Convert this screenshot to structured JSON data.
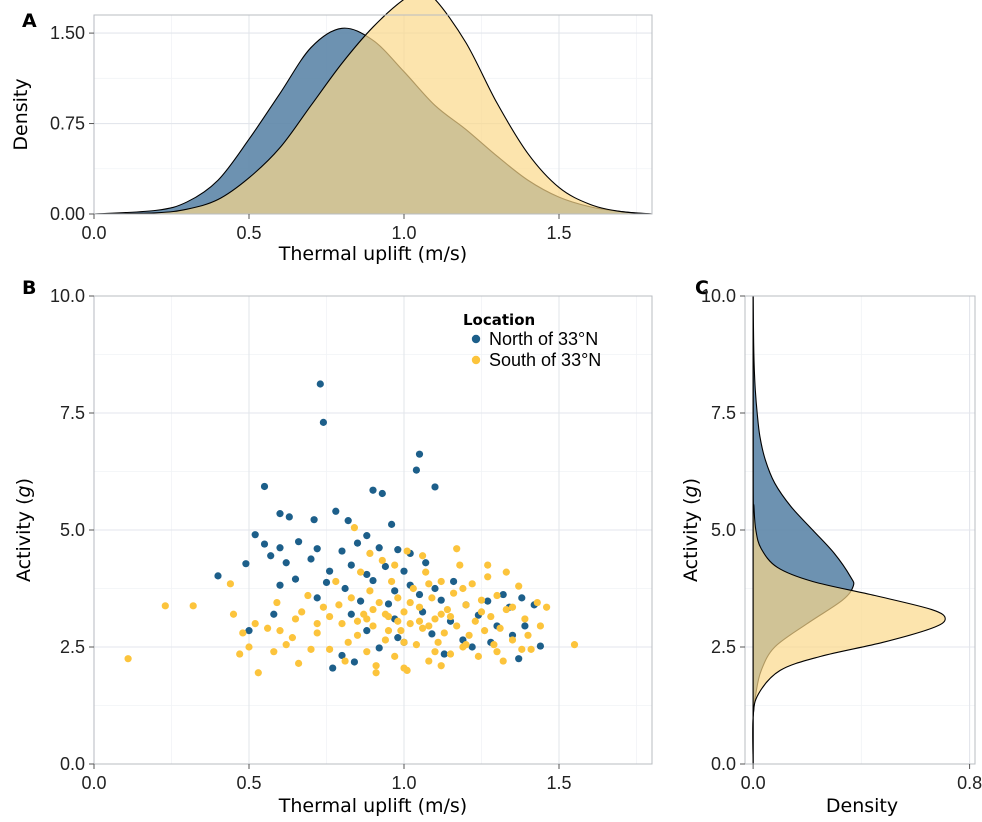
{
  "colors": {
    "north": "#1d5f8a",
    "south": "#fcc43c",
    "north_fill": "#5d86a8",
    "south_fill": "#fbd98a"
  },
  "legend": {
    "title": "Location",
    "items": [
      {
        "label": "North of 33°N",
        "color": "#1d5f8a"
      },
      {
        "label": "South of 33°N",
        "color": "#fcc43c"
      }
    ]
  },
  "chart_data": [
    {
      "panel": "A",
      "type": "area",
      "xlabel": "Thermal uplift (m/s)",
      "ylabel": "Density",
      "xlim": [
        0,
        1.8
      ],
      "ylim": [
        0,
        1.65
      ],
      "xticks": [
        "0.0",
        "0.5",
        "1.0",
        "1.5"
      ],
      "yticks": [
        "0.00",
        "0.75",
        "1.50"
      ],
      "series": [
        {
          "name": "North of 33°N",
          "x": [
            0.0,
            0.2,
            0.3,
            0.4,
            0.5,
            0.6,
            0.7,
            0.8,
            0.9,
            1.0,
            1.1,
            1.2,
            1.3,
            1.4,
            1.5,
            1.6,
            1.7,
            1.8
          ],
          "values": [
            0.0,
            0.03,
            0.1,
            0.28,
            0.62,
            1.0,
            1.38,
            1.54,
            1.44,
            1.18,
            0.9,
            0.7,
            0.48,
            0.28,
            0.14,
            0.06,
            0.02,
            0.0
          ]
        },
        {
          "name": "South of 33°N",
          "x": [
            0.0,
            0.2,
            0.3,
            0.4,
            0.5,
            0.6,
            0.7,
            0.8,
            0.9,
            1.0,
            1.05,
            1.1,
            1.2,
            1.3,
            1.4,
            1.5,
            1.6,
            1.7,
            1.8
          ],
          "values": [
            0.0,
            0.01,
            0.04,
            0.12,
            0.3,
            0.55,
            0.9,
            1.25,
            1.55,
            1.78,
            1.83,
            1.78,
            1.42,
            0.92,
            0.5,
            0.22,
            0.08,
            0.02,
            0.0
          ]
        }
      ]
    },
    {
      "panel": "B",
      "type": "scatter",
      "xlabel": "Thermal uplift (m/s)",
      "ylabel_main": "Activity (",
      "ylabel_italic": "g",
      "ylabel_end": ")",
      "xlim": [
        0,
        1.8
      ],
      "ylim": [
        0,
        10
      ],
      "xticks": [
        "0.0",
        "0.5",
        "1.0",
        "1.5"
      ],
      "yticks": [
        "0.0",
        "2.5",
        "5.0",
        "7.5",
        "10.0"
      ],
      "series": [
        {
          "name": "North of 33°N",
          "points": [
            [
              0.73,
              8.12
            ],
            [
              0.74,
              7.3
            ],
            [
              1.05,
              6.62
            ],
            [
              1.04,
              6.28
            ],
            [
              1.1,
              5.92
            ],
            [
              0.55,
              5.93
            ],
            [
              0.9,
              5.85
            ],
            [
              0.93,
              5.78
            ],
            [
              0.6,
              5.35
            ],
            [
              0.63,
              5.28
            ],
            [
              0.78,
              5.4
            ],
            [
              0.82,
              5.2
            ],
            [
              0.71,
              5.22
            ],
            [
              0.96,
              5.12
            ],
            [
              0.88,
              4.88
            ],
            [
              0.52,
              4.9
            ],
            [
              0.55,
              4.7
            ],
            [
              0.6,
              4.62
            ],
            [
              0.66,
              4.75
            ],
            [
              0.72,
              4.6
            ],
            [
              0.8,
              4.55
            ],
            [
              0.85,
              4.72
            ],
            [
              0.92,
              4.62
            ],
            [
              0.98,
              4.58
            ],
            [
              1.02,
              4.5
            ],
            [
              0.49,
              4.28
            ],
            [
              0.57,
              4.45
            ],
            [
              0.62,
              4.3
            ],
            [
              0.7,
              4.38
            ],
            [
              0.76,
              4.12
            ],
            [
              0.83,
              4.25
            ],
            [
              0.88,
              4.05
            ],
            [
              0.94,
              4.22
            ],
            [
              1.0,
              4.12
            ],
            [
              1.07,
              4.3
            ],
            [
              0.4,
              4.02
            ],
            [
              0.6,
              3.82
            ],
            [
              0.65,
              3.95
            ],
            [
              0.75,
              3.88
            ],
            [
              0.81,
              3.75
            ],
            [
              0.9,
              3.92
            ],
            [
              0.97,
              3.7
            ],
            [
              1.02,
              3.82
            ],
            [
              1.1,
              3.75
            ],
            [
              1.16,
              3.9
            ],
            [
              0.72,
              3.55
            ],
            [
              0.86,
              3.48
            ],
            [
              0.95,
              3.42
            ],
            [
              1.12,
              3.5
            ],
            [
              1.2,
              3.4
            ],
            [
              1.27,
              3.48
            ],
            [
              1.34,
              3.35
            ],
            [
              1.38,
              3.55
            ],
            [
              1.42,
              3.4
            ],
            [
              0.83,
              3.2
            ],
            [
              0.97,
              3.1
            ],
            [
              1.06,
              3.25
            ],
            [
              1.15,
              3.05
            ],
            [
              1.24,
              3.18
            ],
            [
              1.3,
              2.95
            ],
            [
              0.88,
              2.85
            ],
            [
              0.98,
              2.7
            ],
            [
              1.09,
              2.78
            ],
            [
              1.19,
              2.65
            ],
            [
              1.35,
              2.75
            ],
            [
              1.39,
              2.95
            ],
            [
              1.44,
              2.52
            ],
            [
              1.28,
              2.6
            ],
            [
              0.92,
              2.48
            ],
            [
              0.8,
              2.32
            ],
            [
              1.37,
              2.25
            ],
            [
              0.77,
              2.05
            ],
            [
              0.84,
              2.18
            ],
            [
              1.0,
              2.6
            ],
            [
              1.22,
              2.5
            ],
            [
              0.5,
              2.85
            ],
            [
              0.58,
              3.2
            ],
            [
              1.32,
              3.62
            ],
            [
              1.13,
              2.35
            ],
            [
              1.05,
              3.62
            ]
          ]
        },
        {
          "name": "South of 33°N",
          "points": [
            [
              0.11,
              2.25
            ],
            [
              0.23,
              3.38
            ],
            [
              0.32,
              3.38
            ],
            [
              0.44,
              3.85
            ],
            [
              0.47,
              2.35
            ],
            [
              0.5,
              2.5
            ],
            [
              0.53,
              1.95
            ],
            [
              0.56,
              2.9
            ],
            [
              0.59,
              3.45
            ],
            [
              0.62,
              2.55
            ],
            [
              0.65,
              3.1
            ],
            [
              0.66,
              2.15
            ],
            [
              0.69,
              3.6
            ],
            [
              0.72,
              2.8
            ],
            [
              0.74,
              3.35
            ],
            [
              0.76,
              2.45
            ],
            [
              0.78,
              3.9
            ],
            [
              0.8,
              3.0
            ],
            [
              0.81,
              2.2
            ],
            [
              0.83,
              3.55
            ],
            [
              0.85,
              2.75
            ],
            [
              0.86,
              4.1
            ],
            [
              0.87,
              3.2
            ],
            [
              0.88,
              2.4
            ],
            [
              0.89,
              3.7
            ],
            [
              0.9,
              2.95
            ],
            [
              0.91,
              2.1
            ],
            [
              0.92,
              3.45
            ],
            [
              0.93,
              4.35
            ],
            [
              0.94,
              2.65
            ],
            [
              0.95,
              3.15
            ],
            [
              0.96,
              3.9
            ],
            [
              0.97,
              2.3
            ],
            [
              0.98,
              3.55
            ],
            [
              0.99,
              2.85
            ],
            [
              1.0,
              3.25
            ],
            [
              1.01,
              4.55
            ],
            [
              1.01,
              2.0
            ],
            [
              1.02,
              3.0
            ],
            [
              1.03,
              3.75
            ],
            [
              1.04,
              2.55
            ],
            [
              1.05,
              3.35
            ],
            [
              1.06,
              2.9
            ],
            [
              1.07,
              4.1
            ],
            [
              1.08,
              2.2
            ],
            [
              1.09,
              3.55
            ],
            [
              1.1,
              3.1
            ],
            [
              1.11,
              2.6
            ],
            [
              1.12,
              3.9
            ],
            [
              1.13,
              2.8
            ],
            [
              1.14,
              3.3
            ],
            [
              1.15,
              2.35
            ],
            [
              1.16,
              3.65
            ],
            [
              1.17,
              2.95
            ],
            [
              1.18,
              4.25
            ],
            [
              1.19,
              2.5
            ],
            [
              1.2,
              3.4
            ],
            [
              1.21,
              2.75
            ],
            [
              1.22,
              3.85
            ],
            [
              1.23,
              3.05
            ],
            [
              1.24,
              2.3
            ],
            [
              1.25,
              3.5
            ],
            [
              1.26,
              2.85
            ],
            [
              1.27,
              4.0
            ],
            [
              1.28,
              3.15
            ],
            [
              1.29,
              2.55
            ],
            [
              1.3,
              3.6
            ],
            [
              1.31,
              2.9
            ],
            [
              1.32,
              2.2
            ],
            [
              1.33,
              3.3
            ],
            [
              1.35,
              2.65
            ],
            [
              1.37,
              3.8
            ],
            [
              1.39,
              3.1
            ],
            [
              1.41,
              2.45
            ],
            [
              1.43,
              3.45
            ],
            [
              1.55,
              2.55
            ],
            [
              1.17,
              4.6
            ],
            [
              1.06,
              4.45
            ],
            [
              0.84,
              5.05
            ],
            [
              1.27,
              4.25
            ],
            [
              0.91,
              1.95
            ],
            [
              1.0,
              2.05
            ],
            [
              1.12,
              2.1
            ],
            [
              0.6,
              2.85
            ],
            [
              0.67,
              3.25
            ],
            [
              0.72,
              3.0
            ],
            [
              0.79,
              3.4
            ],
            [
              0.85,
              3.05
            ],
            [
              0.9,
              3.3
            ],
            [
              0.95,
              2.85
            ],
            [
              1.0,
              2.6
            ],
            [
              1.05,
              3.05
            ],
            [
              1.1,
              2.4
            ],
            [
              1.15,
              3.15
            ],
            [
              1.2,
              2.55
            ],
            [
              1.25,
              3.25
            ],
            [
              1.3,
              2.4
            ],
            [
              1.35,
              3.35
            ],
            [
              1.4,
              2.75
            ],
            [
              0.98,
              3.05
            ],
            [
              1.02,
              3.45
            ],
            [
              1.08,
              2.95
            ],
            [
              0.94,
              3.2
            ],
            [
              1.12,
              3.2
            ],
            [
              0.88,
              3.1
            ],
            [
              0.82,
              2.6
            ],
            [
              0.76,
              3.15
            ],
            [
              0.7,
              2.45
            ],
            [
              0.64,
              2.7
            ],
            [
              0.58,
              2.4
            ],
            [
              0.52,
              3.0
            ],
            [
              0.48,
              2.8
            ],
            [
              0.45,
              3.2
            ],
            [
              1.46,
              3.35
            ],
            [
              1.44,
              2.95
            ],
            [
              1.38,
              2.45
            ],
            [
              1.33,
              4.1
            ],
            [
              1.19,
              3.75
            ],
            [
              0.97,
              4.25
            ],
            [
              0.89,
              4.5
            ],
            [
              1.08,
              3.85
            ]
          ]
        }
      ]
    },
    {
      "panel": "C",
      "type": "area",
      "xlabel": "Density",
      "ylabel_main": "Activity (",
      "ylabel_italic": "g",
      "ylabel_end": ")",
      "xlim": [
        0,
        0.8
      ],
      "ylim": [
        0,
        10
      ],
      "xticks": [
        "0.0",
        "0.8"
      ],
      "yticks": [
        "0.0",
        "2.5",
        "5.0",
        "7.5",
        "10.0"
      ],
      "series": [
        {
          "name": "North of 33°N",
          "y": [
            0.0,
            1.0,
            1.5,
            2.0,
            2.5,
            3.0,
            3.5,
            3.8,
            4.0,
            4.5,
            5.0,
            5.5,
            6.0,
            6.5,
            7.0,
            7.5,
            8.0,
            8.5,
            9.0,
            10.0
          ],
          "values": [
            0.0,
            0.0,
            0.01,
            0.03,
            0.08,
            0.2,
            0.33,
            0.37,
            0.36,
            0.3,
            0.22,
            0.14,
            0.08,
            0.045,
            0.025,
            0.015,
            0.008,
            0.004,
            0.002,
            0.0
          ]
        },
        {
          "name": "South of 33°N",
          "y": [
            0.0,
            1.0,
            1.5,
            2.0,
            2.3,
            2.6,
            2.9,
            3.1,
            3.3,
            3.6,
            3.9,
            4.2,
            4.6,
            5.0,
            5.5,
            6.0,
            10.0
          ],
          "values": [
            0.0,
            0.0,
            0.02,
            0.1,
            0.25,
            0.48,
            0.66,
            0.71,
            0.66,
            0.45,
            0.22,
            0.09,
            0.03,
            0.01,
            0.003,
            0.0,
            0.0
          ]
        }
      ]
    }
  ]
}
